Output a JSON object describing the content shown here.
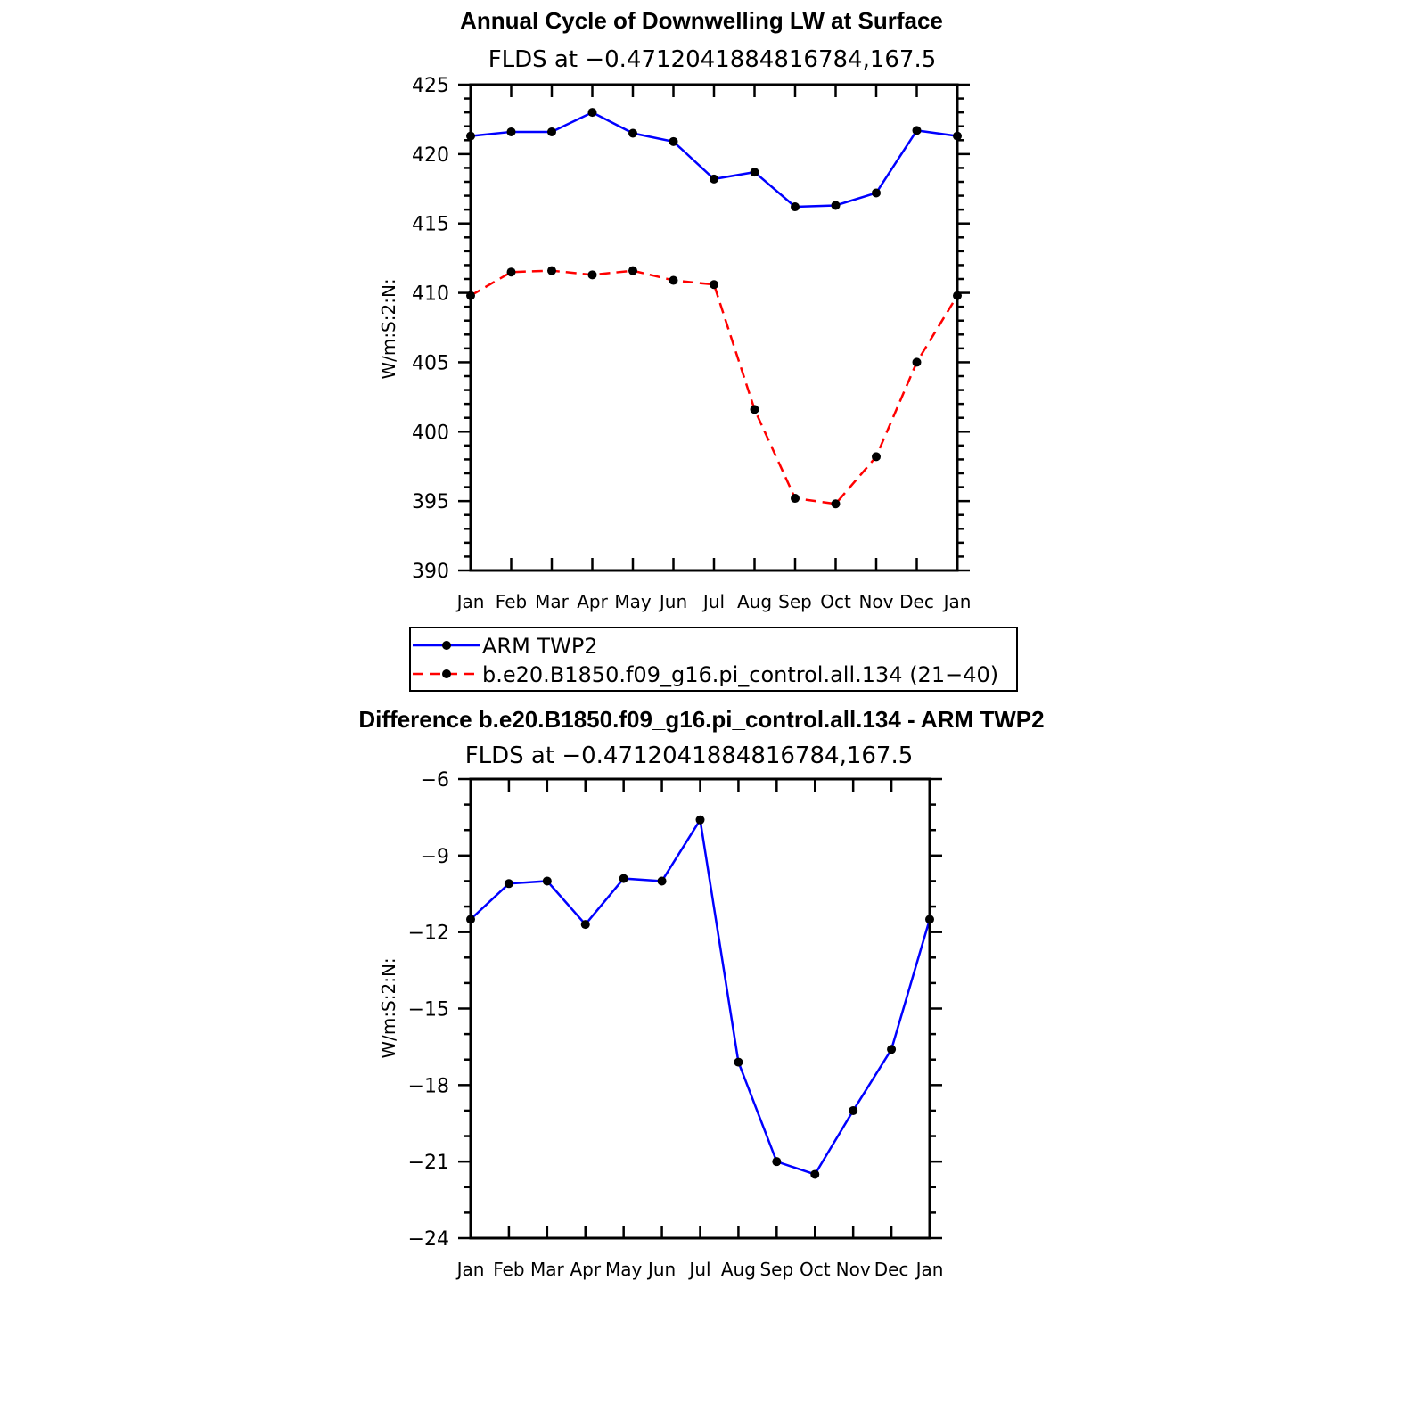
{
  "chart_data": [
    {
      "type": "line",
      "title": "Annual Cycle of Downwelling LW at Surface",
      "subtitle": "FLDS at −0.4712041884816784,167.5",
      "ylabel": "W/m:S:2:N:",
      "xlabel": "",
      "categories": [
        "Jan",
        "Feb",
        "Mar",
        "Apr",
        "May",
        "Jun",
        "Jul",
        "Aug",
        "Sep",
        "Oct",
        "Nov",
        "Dec",
        "Jan"
      ],
      "ylim": [
        390,
        425
      ],
      "yticks": [
        "390",
        "395",
        "400",
        "405",
        "410",
        "415",
        "420",
        "425"
      ],
      "series": [
        {
          "name": "ARM TWP2",
          "color": "#0000ff",
          "dash": "solid",
          "values": [
            421.3,
            421.6,
            421.6,
            423.0,
            421.5,
            420.9,
            418.2,
            418.7,
            416.2,
            416.3,
            417.2,
            421.7,
            421.3
          ]
        },
        {
          "name": "b.e20.B1850.f09_g16.pi_control.all.134 (21−40)",
          "color": "#ff0000",
          "dash": "dashed",
          "values": [
            409.8,
            411.5,
            411.6,
            411.3,
            411.6,
            410.9,
            410.6,
            401.6,
            395.2,
            394.8,
            398.2,
            405.0,
            409.8
          ]
        }
      ],
      "legend": [
        "ARM TWP2",
        "b.e20.B1850.f09_g16.pi_control.all.134 (21−40)"
      ],
      "legend_position": "bottom"
    },
    {
      "type": "line",
      "title": "Difference b.e20.B1850.f09_g16.pi_control.all.134 - ARM TWP2",
      "subtitle": "FLDS at −0.4712041884816784,167.5",
      "ylabel": "W/m:S:2:N:",
      "xlabel": "",
      "categories": [
        "Jan",
        "Feb",
        "Mar",
        "Apr",
        "May",
        "Jun",
        "Jul",
        "Aug",
        "Sep",
        "Oct",
        "Nov",
        "Dec",
        "Jan"
      ],
      "ylim": [
        -24,
        -6
      ],
      "yticks": [
        "−24",
        "−21",
        "−18",
        "−15",
        "−12",
        "−9",
        "−6"
      ],
      "series": [
        {
          "name": "difference",
          "color": "#0000ff",
          "dash": "solid",
          "values": [
            -11.5,
            -10.1,
            -10.0,
            -11.7,
            -9.9,
            -10.0,
            -7.6,
            -17.1,
            -21.0,
            -21.5,
            -19.0,
            -16.6,
            -11.5
          ]
        }
      ]
    }
  ]
}
